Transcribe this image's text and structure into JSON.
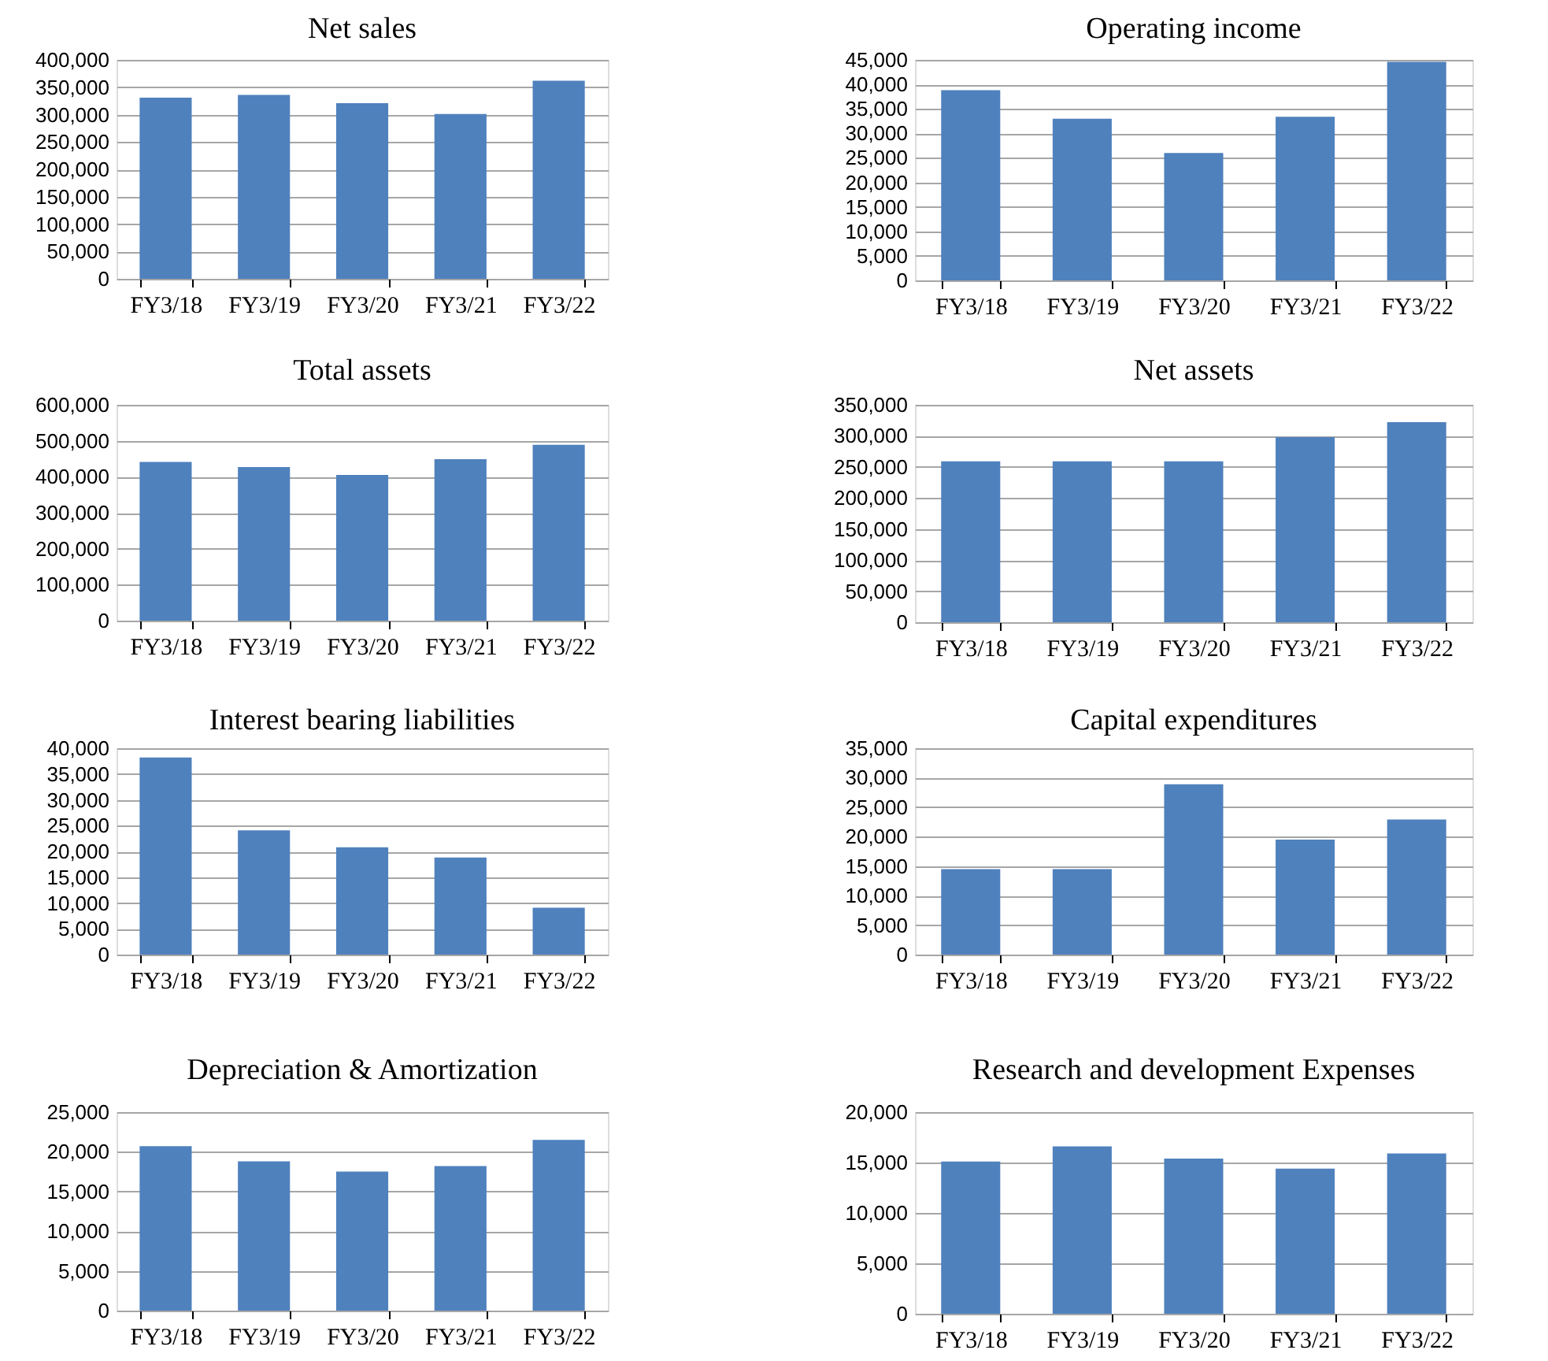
{
  "chart_data": [
    {
      "type": "bar",
      "title": "Net sales",
      "categories": [
        "FY3/18",
        "FY3/19",
        "FY3/20",
        "FY3/21",
        "FY3/22"
      ],
      "values": [
        331000,
        336000,
        321000,
        301000,
        362000
      ],
      "color": "#4f81bd",
      "ylim": [
        0,
        400000
      ],
      "yticks": [
        {
          "value": 0,
          "label": "0"
        },
        {
          "value": 50000,
          "label": "50,000"
        },
        {
          "value": 100000,
          "label": "100,000"
        },
        {
          "value": 150000,
          "label": "150,000"
        },
        {
          "value": 200000,
          "label": "200,000"
        },
        {
          "value": 250000,
          "label": "250,000"
        },
        {
          "value": 300000,
          "label": "300,000"
        },
        {
          "value": 350000,
          "label": "350,000"
        },
        {
          "value": 400000,
          "label": "400,000"
        }
      ],
      "grid": "y"
    },
    {
      "type": "bar",
      "title": "Operating income",
      "categories": [
        "FY3/18",
        "FY3/19",
        "FY3/20",
        "FY3/21",
        "FY3/22"
      ],
      "values": [
        38800,
        33000,
        26000,
        33400,
        44600
      ],
      "color": "#4f81bd",
      "ylim": [
        0,
        45000
      ],
      "yticks": [
        {
          "value": 0,
          "label": "0"
        },
        {
          "value": 5000,
          "label": "5,000"
        },
        {
          "value": 10000,
          "label": "10,000"
        },
        {
          "value": 15000,
          "label": "15,000"
        },
        {
          "value": 20000,
          "label": "20,000"
        },
        {
          "value": 25000,
          "label": "25,000"
        },
        {
          "value": 30000,
          "label": "30,000"
        },
        {
          "value": 35000,
          "label": "35,000"
        },
        {
          "value": 40000,
          "label": "40,000"
        },
        {
          "value": 45000,
          "label": "45,000"
        }
      ],
      "grid": "y"
    },
    {
      "type": "bar",
      "title": "Total assets",
      "categories": [
        "FY3/18",
        "FY3/19",
        "FY3/20",
        "FY3/21",
        "FY3/22"
      ],
      "values": [
        441000,
        427000,
        405000,
        449000,
        489000
      ],
      "color": "#4f81bd",
      "ylim": [
        0,
        600000
      ],
      "yticks": [
        {
          "value": 0,
          "label": "0"
        },
        {
          "value": 100000,
          "label": "100,000"
        },
        {
          "value": 200000,
          "label": "200,000"
        },
        {
          "value": 300000,
          "label": "300,000"
        },
        {
          "value": 400000,
          "label": "400,000"
        },
        {
          "value": 500000,
          "label": "500,000"
        },
        {
          "value": 600000,
          "label": "600,000"
        }
      ],
      "grid": "y"
    },
    {
      "type": "bar",
      "title": "Net assets",
      "categories": [
        "FY3/18",
        "FY3/19",
        "FY3/20",
        "FY3/21",
        "FY3/22"
      ],
      "values": [
        259000,
        259000,
        259000,
        298000,
        322000
      ],
      "color": "#4f81bd",
      "ylim": [
        0,
        350000
      ],
      "yticks": [
        {
          "value": 0,
          "label": "0"
        },
        {
          "value": 50000,
          "label": "50,000"
        },
        {
          "value": 100000,
          "label": "100,000"
        },
        {
          "value": 150000,
          "label": "150,000"
        },
        {
          "value": 200000,
          "label": "200,000"
        },
        {
          "value": 250000,
          "label": "250,000"
        },
        {
          "value": 300000,
          "label": "300,000"
        },
        {
          "value": 350000,
          "label": "350,000"
        }
      ],
      "grid": "y"
    },
    {
      "type": "bar",
      "title": "Interest bearing liabilities",
      "categories": [
        "FY3/18",
        "FY3/19",
        "FY3/20",
        "FY3/21",
        "FY3/22"
      ],
      "values": [
        38200,
        24100,
        20800,
        18800,
        9100
      ],
      "color": "#4f81bd",
      "ylim": [
        0,
        40000
      ],
      "yticks": [
        {
          "value": 0,
          "label": "0"
        },
        {
          "value": 5000,
          "label": "5,000"
        },
        {
          "value": 10000,
          "label": "10,000"
        },
        {
          "value": 15000,
          "label": "15,000"
        },
        {
          "value": 20000,
          "label": "20,000"
        },
        {
          "value": 25000,
          "label": "25,000"
        },
        {
          "value": 30000,
          "label": "30,000"
        },
        {
          "value": 35000,
          "label": "35,000"
        },
        {
          "value": 40000,
          "label": "40,000"
        }
      ],
      "grid": "y"
    },
    {
      "type": "bar",
      "title": "Capital expenditures",
      "categories": [
        "FY3/18",
        "FY3/19",
        "FY3/20",
        "FY3/21",
        "FY3/22"
      ],
      "values": [
        14500,
        14500,
        28900,
        19500,
        22900
      ],
      "color": "#4f81bd",
      "ylim": [
        0,
        35000
      ],
      "yticks": [
        {
          "value": 0,
          "label": "0"
        },
        {
          "value": 5000,
          "label": "5,000"
        },
        {
          "value": 10000,
          "label": "10,000"
        },
        {
          "value": 15000,
          "label": "15,000"
        },
        {
          "value": 20000,
          "label": "20,000"
        },
        {
          "value": 25000,
          "label": "25,000"
        },
        {
          "value": 30000,
          "label": "30,000"
        },
        {
          "value": 35000,
          "label": "35,000"
        }
      ],
      "grid": "y"
    },
    {
      "type": "bar",
      "title": "Depreciation & Amortization",
      "categories": [
        "FY3/18",
        "FY3/19",
        "FY3/20",
        "FY3/21",
        "FY3/22"
      ],
      "values": [
        20700,
        18800,
        17500,
        18200,
        21500
      ],
      "color": "#4f81bd",
      "ylim": [
        0,
        25000
      ],
      "yticks": [
        {
          "value": 0,
          "label": "0"
        },
        {
          "value": 5000,
          "label": "5,000"
        },
        {
          "value": 10000,
          "label": "10,000"
        },
        {
          "value": 15000,
          "label": "15,000"
        },
        {
          "value": 20000,
          "label": "20,000"
        },
        {
          "value": 25000,
          "label": "25,000"
        }
      ],
      "grid": "y"
    },
    {
      "type": "bar",
      "title": "Research and development Expenses",
      "categories": [
        "FY3/18",
        "FY3/19",
        "FY3/20",
        "FY3/21",
        "FY3/22"
      ],
      "values": [
        15100,
        16600,
        15400,
        14400,
        15900
      ],
      "color": "#4f81bd",
      "ylim": [
        0,
        20000
      ],
      "yticks": [
        {
          "value": 0,
          "label": "0"
        },
        {
          "value": 5000,
          "label": "5,000"
        },
        {
          "value": 10000,
          "label": "10,000"
        },
        {
          "value": 15000,
          "label": "15,000"
        },
        {
          "value": 20000,
          "label": "20,000"
        }
      ],
      "grid": "y"
    }
  ]
}
